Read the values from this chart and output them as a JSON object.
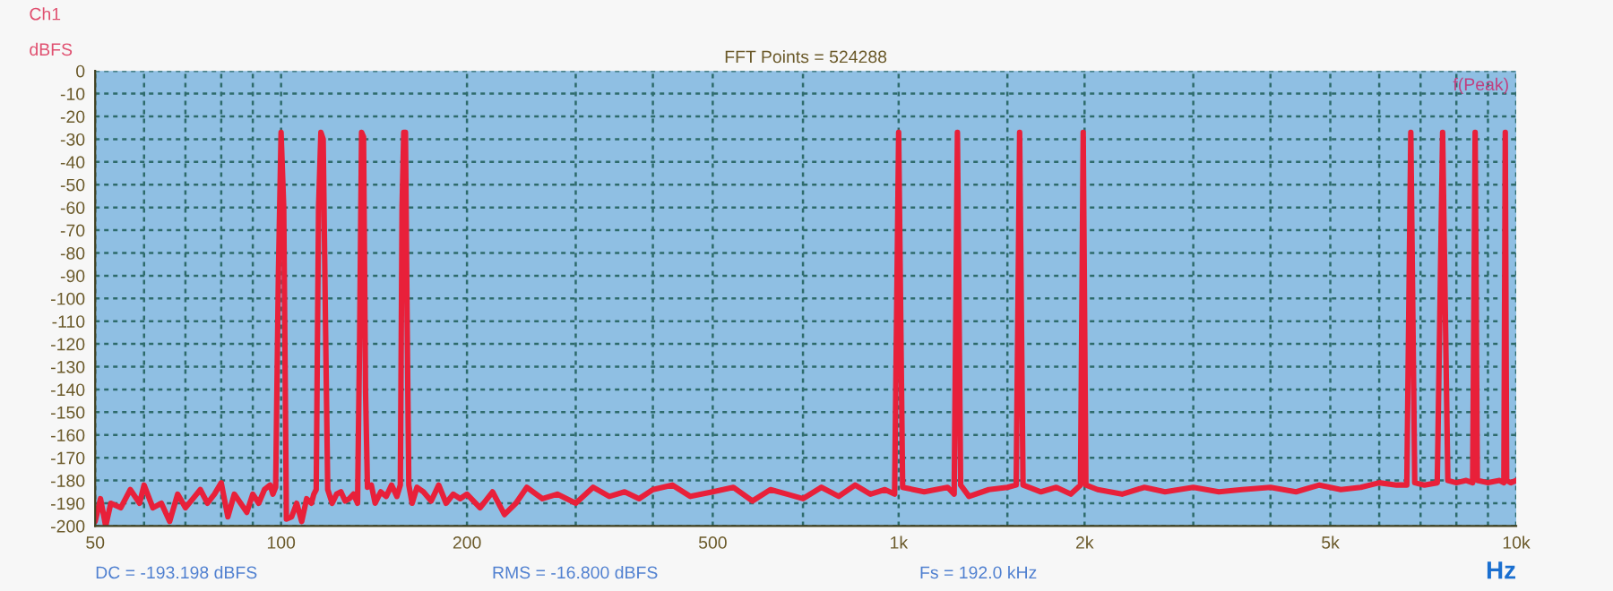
{
  "chart_data": {
    "type": "line",
    "ylabel": "dBFS",
    "xlabel": "Hz",
    "annotations": [
      "Ch1",
      "FFT Points = 524288",
      "f(Peak)",
      "DC = -193.198 dBFS",
      "RMS = -16.800 dBFS",
      "Fs = 192.0 kHz"
    ],
    "log": "x",
    "xlim": [
      50,
      10000
    ],
    "ylim": [
      -200,
      0
    ],
    "xticks": [
      50,
      {
        "value": 60,
        "label": null
      },
      {
        "value": 70,
        "label": null
      },
      {
        "value": 80,
        "label": null
      },
      {
        "value": 90,
        "label": null
      },
      100,
      200,
      {
        "value": 300,
        "label": null
      },
      {
        "value": 400,
        "label": null
      },
      500,
      {
        "value": 700,
        "label": null
      },
      {
        "value": 1000,
        "label": "1k"
      },
      {
        "value": 1500,
        "label": null
      },
      {
        "value": 2000,
        "label": "2k"
      },
      {
        "value": 3000,
        "label": null
      },
      {
        "value": 4000,
        "label": null
      },
      {
        "value": 5000,
        "label": "5k"
      },
      {
        "value": 6000,
        "label": null
      },
      {
        "value": 7000,
        "label": null
      },
      {
        "value": 8000,
        "label": null
      },
      {
        "value": 9000,
        "label": null
      },
      {
        "value": 10000,
        "label": "10k"
      }
    ],
    "yticks": [
      0,
      -10,
      -20,
      -30,
      -40,
      -50,
      -60,
      -70,
      -80,
      -90,
      -100,
      -110,
      -120,
      -130,
      -140,
      -150,
      -160,
      -170,
      -180,
      -190,
      -200
    ],
    "grid": true,
    "line_style": "solid",
    "series": [
      {
        "color": "#e8203a",
        "x": [
          50,
          51,
          52,
          53,
          55,
          57,
          59,
          60,
          62,
          64,
          66,
          68,
          70,
          72,
          74,
          76,
          78,
          80,
          82,
          84,
          86,
          88,
          90,
          92,
          94,
          96,
          97,
          98,
          99,
          100,
          101,
          102,
          104,
          106,
          108,
          110,
          112,
          113,
          114,
          115,
          116,
          117,
          118,
          119,
          121,
          123,
          125,
          127,
          129,
          131,
          133,
          134,
          135,
          136,
          137,
          138,
          140,
          142,
          145,
          148,
          151,
          154,
          156,
          157,
          158,
          159,
          160,
          161,
          163,
          166,
          170,
          175,
          180,
          185,
          190,
          195,
          200,
          210,
          220,
          230,
          240,
          250,
          265,
          280,
          300,
          320,
          340,
          360,
          380,
          400,
          430,
          460,
          500,
          540,
          580,
          620,
          660,
          700,
          750,
          800,
          850,
          900,
          950,
          985,
          1000,
          1015,
          1100,
          1200,
          1230,
          1245,
          1260,
          1300,
          1400,
          1500,
          1550,
          1570,
          1590,
          1700,
          1800,
          1900,
          1970,
          1990,
          2010,
          2100,
          2300,
          2500,
          2700,
          3000,
          3300,
          3600,
          4000,
          4400,
          4800,
          5200,
          5600,
          6000,
          6400,
          6650,
          6750,
          6850,
          7100,
          7450,
          7600,
          7750,
          8000,
          8300,
          8500,
          8580,
          8650,
          9000,
          9400,
          9550,
          9600,
          9650,
          9800,
          10000
        ],
        "values": [
          -198,
          -188,
          -200,
          -190,
          -192,
          -184,
          -190,
          -182,
          -192,
          -190,
          -198,
          -186,
          -192,
          -188,
          -184,
          -190,
          -186,
          -181,
          -196,
          -186,
          -190,
          -194,
          -186,
          -190,
          -184,
          -182,
          -186,
          -183,
          -90,
          -27,
          -60,
          -197,
          -196,
          -190,
          -198,
          -188,
          -190,
          -186,
          -184,
          -60,
          -27,
          -30,
          -110,
          -184,
          -190,
          -186,
          -185,
          -189,
          -188,
          -186,
          -190,
          -120,
          -27,
          -29,
          -140,
          -183,
          -182,
          -190,
          -185,
          -187,
          -182,
          -187,
          -182,
          -60,
          -27,
          -27,
          -110,
          -182,
          -190,
          -183,
          -185,
          -189,
          -182,
          -190,
          -186,
          -188,
          -186,
          -192,
          -185,
          -195,
          -190,
          -183,
          -188,
          -186,
          -190,
          -183,
          -187,
          -185,
          -188,
          -184,
          -182,
          -187,
          -185,
          -183,
          -189,
          -184,
          -186,
          -188,
          -183,
          -187,
          -182,
          -186,
          -184,
          -186,
          -27,
          -183,
          -185,
          -183,
          -186,
          -27,
          -182,
          -187,
          -184,
          -183,
          -182,
          -27,
          -182,
          -185,
          -183,
          -186,
          -182,
          -27,
          -182,
          -184,
          -186,
          -183,
          -185,
          -183,
          -185,
          -184,
          -183,
          -185,
          -182,
          -184,
          -183,
          -181,
          -182,
          -182,
          -27,
          -181,
          -182,
          -181,
          -27,
          -180,
          -181,
          -180,
          -181,
          -27,
          -180,
          -181,
          -180,
          -181,
          -27,
          -180,
          -181,
          -180
        ]
      }
    ]
  }
}
